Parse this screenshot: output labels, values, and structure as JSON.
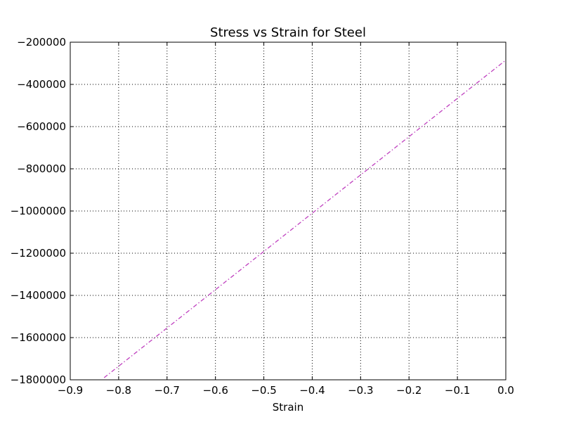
{
  "chart_data": {
    "type": "line",
    "title": "Stress vs Strain for Steel",
    "xlabel": "Strain",
    "ylabel": "",
    "xlim": [
      -0.9,
      0.0
    ],
    "ylim": [
      -1800000,
      -200000
    ],
    "xticks": [
      -0.9,
      -0.8,
      -0.7,
      -0.6,
      -0.5,
      -0.4,
      -0.3,
      -0.2,
      -0.1,
      0.0
    ],
    "xtick_labels": [
      "−0.9",
      "−0.8",
      "−0.7",
      "−0.6",
      "−0.5",
      "−0.4",
      "−0.3",
      "−0.2",
      "−0.1",
      "0.0"
    ],
    "yticks": [
      -200000,
      -400000,
      -600000,
      -800000,
      -1000000,
      -1200000,
      -1400000,
      -1600000,
      -1800000
    ],
    "ytick_labels": [
      "−200000",
      "−400000",
      "−600000",
      "−800000",
      "−1000000",
      "−1200000",
      "−1400000",
      "−1600000",
      "−1800000"
    ],
    "grid": true,
    "series": [
      {
        "color": "#bf40bf",
        "linestyle": "dashdot",
        "x": [
          -0.83,
          0.0
        ],
        "y": [
          -1790000,
          -285000
        ]
      }
    ]
  }
}
